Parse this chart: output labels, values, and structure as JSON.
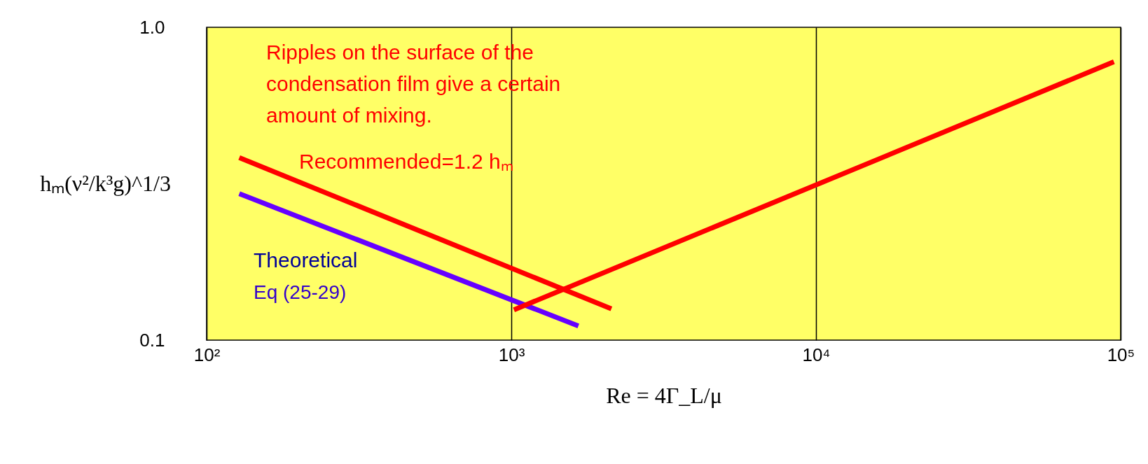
{
  "chart_data": {
    "type": "line",
    "log": "xy",
    "xlabel": "Re = 4Γ_L/μ",
    "ylabel": "hₘ(ν²/k³g)^1/3",
    "xlim": [
      100,
      100000
    ],
    "ylim": [
      0.1,
      1.0
    ],
    "xticks": [
      {
        "value": 100,
        "label": "10²"
      },
      {
        "value": 1000,
        "label": "10³"
      },
      {
        "value": 10000,
        "label": "10⁴"
      },
      {
        "value": 100000,
        "label": "10⁵"
      }
    ],
    "yticks": [
      {
        "value": 0.1,
        "label": "0.1"
      },
      {
        "value": 1.0,
        "label": "1.0"
      }
    ],
    "grid": "x",
    "marker": "none",
    "line_style": "solid",
    "series": [
      {
        "color": "#ff0000",
        "x": [
          128,
          2130
        ],
        "values": [
          0.383,
          0.126
        ]
      },
      {
        "color": "#6600ff",
        "x": [
          128,
          1660
        ],
        "values": [
          0.294,
          0.111
        ]
      },
      {
        "color": "#ff0000",
        "x": [
          1020,
          95000
        ],
        "values": [
          0.125,
          0.776
        ]
      }
    ],
    "annotations": [
      "Ripples on the surface of the\ncondensation film give a certain\namount of mixing.",
      "Recommended=1.2 hₘ",
      "Theoretical",
      "Eq (25-29)"
    ]
  }
}
